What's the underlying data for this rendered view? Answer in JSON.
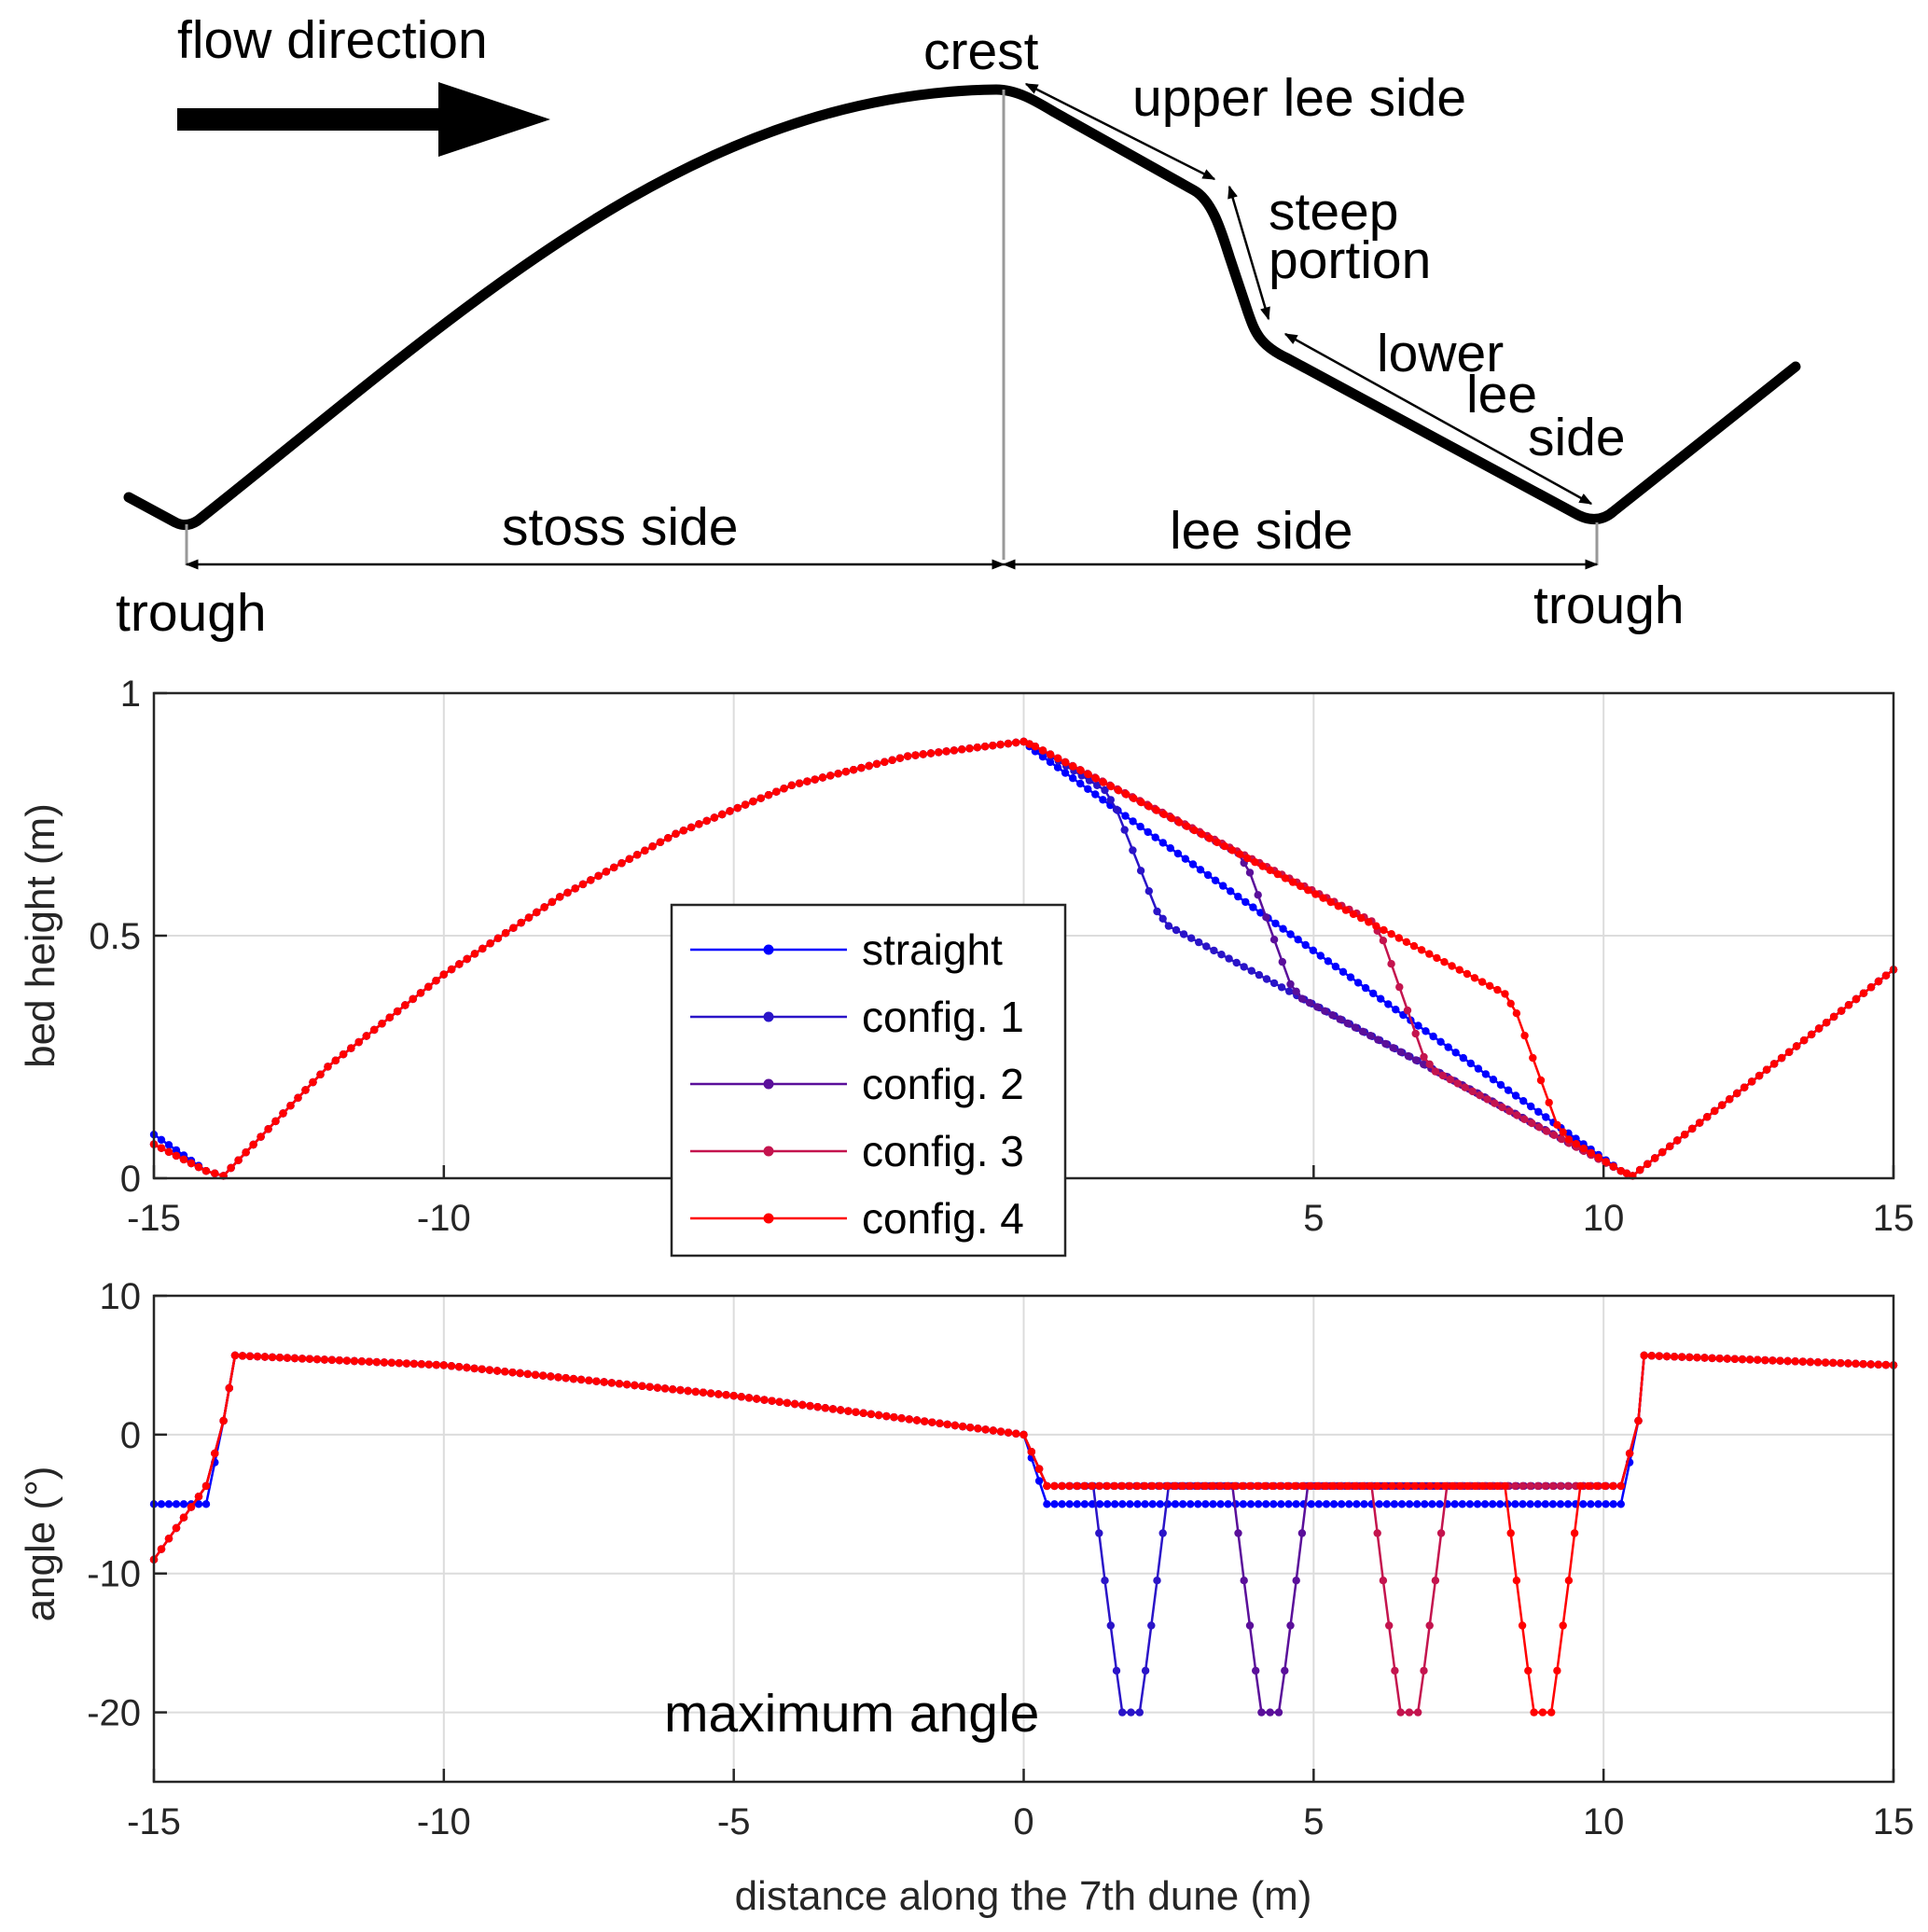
{
  "schematic": {
    "flow_direction": "flow direction",
    "crest": "crest",
    "upper_lee_side": "upper lee side",
    "steep_portion_1": "steep",
    "steep_portion_2": "portion",
    "lower_lee_side_1": "lower",
    "lower_lee_side_2": "lee",
    "lower_lee_side_3": "side",
    "stoss_side": "stoss side",
    "lee_side": "lee side",
    "trough_left": "trough",
    "trough_right": "trough"
  },
  "chart_data": [
    {
      "type": "line",
      "ylabel": "bed height (m)",
      "xlabel": "",
      "xlim": [
        -15,
        15
      ],
      "ylim": [
        0,
        1
      ],
      "xticks": [
        -15,
        -10,
        -5,
        0,
        5,
        10,
        15
      ],
      "xtick_labels": [
        "-15",
        "-10",
        "",
        "",
        "5",
        "10",
        "15"
      ],
      "yticks": [
        0,
        0.5,
        1
      ],
      "ytick_labels": [
        "0",
        "0.5",
        "1"
      ],
      "grid": true,
      "legend": {
        "position": "center",
        "entries": [
          "straight",
          "config. 1",
          "config. 2",
          "config. 3",
          "config. 4"
        ]
      },
      "series": [
        {
          "name": "straight",
          "color": "#0000ff",
          "x": [
            -15,
            -14.1,
            -13.8,
            -12,
            -10,
            -8,
            -6,
            -4,
            -2,
            0,
            0.2,
            10.3,
            10.5,
            15
          ],
          "y": [
            0.09,
            0.015,
            0.005,
            0.23,
            0.42,
            0.58,
            0.71,
            0.81,
            0.87,
            0.9,
            0.88,
            0.015,
            0.005,
            0.43
          ]
        },
        {
          "name": "config. 1",
          "color": "#2a14c8",
          "x": [
            -15,
            -14.1,
            -13.8,
            -12,
            -10,
            -8,
            -6,
            -4,
            -2,
            0,
            0.2,
            1.4,
            1.6,
            2.3,
            2.5,
            10.3,
            10.5,
            15
          ],
          "y": [
            0.07,
            0.015,
            0.005,
            0.23,
            0.42,
            0.58,
            0.71,
            0.81,
            0.87,
            0.9,
            0.89,
            0.8,
            0.76,
            0.55,
            0.52,
            0.015,
            0.005,
            0.43
          ]
        },
        {
          "name": "config. 2",
          "color": "#5a0f9a",
          "x": [
            -15,
            -14.1,
            -13.8,
            -12,
            -10,
            -8,
            -6,
            -4,
            -2,
            0,
            0.2,
            3.7,
            3.9,
            4.6,
            4.8,
            10.3,
            10.5,
            15
          ],
          "y": [
            0.07,
            0.015,
            0.005,
            0.23,
            0.42,
            0.58,
            0.71,
            0.81,
            0.87,
            0.9,
            0.89,
            0.67,
            0.63,
            0.4,
            0.37,
            0.015,
            0.005,
            0.43
          ]
        },
        {
          "name": "config. 3",
          "color": "#c4144e",
          "x": [
            -15,
            -14.1,
            -13.8,
            -12,
            -10,
            -8,
            -6,
            -4,
            -2,
            0,
            0.2,
            6.0,
            6.2,
            6.9,
            7.1,
            10.3,
            10.5,
            15
          ],
          "y": [
            0.07,
            0.015,
            0.005,
            0.23,
            0.42,
            0.58,
            0.71,
            0.81,
            0.87,
            0.9,
            0.89,
            0.53,
            0.49,
            0.25,
            0.22,
            0.015,
            0.005,
            0.43
          ]
        },
        {
          "name": "config. 4",
          "color": "#ff0000",
          "x": [
            -15,
            -14.1,
            -13.8,
            -12,
            -10,
            -8,
            -6,
            -4,
            -2,
            0,
            0.2,
            8.3,
            8.5,
            9.2,
            9.4,
            10.3,
            10.5,
            15
          ],
          "y": [
            0.07,
            0.015,
            0.005,
            0.23,
            0.42,
            0.58,
            0.71,
            0.81,
            0.87,
            0.9,
            0.89,
            0.38,
            0.34,
            0.11,
            0.08,
            0.015,
            0.005,
            0.43
          ]
        }
      ]
    },
    {
      "type": "line",
      "ylabel": "angle (°)",
      "xlabel": "distance along the 7th dune (m)",
      "xlim": [
        -15,
        15
      ],
      "ylim": [
        -25,
        10
      ],
      "xticks": [
        -15,
        -10,
        -5,
        0,
        5,
        10,
        15
      ],
      "xtick_labels": [
        "-15",
        "-10",
        "-5",
        "0",
        "5",
        "10",
        "15"
      ],
      "yticks": [
        -20,
        -10,
        0,
        10
      ],
      "ytick_labels": [
        "-20",
        "-10",
        "0",
        "10"
      ],
      "grid": true,
      "annotation": "maximum angle",
      "series": [
        {
          "name": "straight",
          "color": "#0000ff",
          "x": [
            -15,
            -14.1,
            -13.8,
            -13.6,
            -10,
            -5,
            0,
            0.4,
            10.3,
            10.6,
            10.7,
            15
          ],
          "y": [
            -5,
            -5,
            1,
            5.7,
            5,
            2.8,
            0,
            -5,
            -5,
            1,
            5.7,
            5
          ]
        },
        {
          "name": "config. 1",
          "color": "#2a14c8",
          "x": [
            -15,
            -14.1,
            -13.8,
            -13.6,
            -10,
            -5,
            0,
            0.4,
            1.2,
            1.4,
            1.6,
            1.7,
            2.0,
            2.1,
            2.3,
            2.5,
            10.3,
            10.6,
            10.7,
            15
          ],
          "y": [
            -9,
            -3.7,
            1,
            5.7,
            5,
            2.8,
            0,
            -3.7,
            -3.7,
            -10.5,
            -17,
            -20,
            -20,
            -17,
            -10.5,
            -3.7,
            -3.7,
            1,
            5.7,
            5
          ]
        },
        {
          "name": "config. 2",
          "color": "#5a0f9a",
          "x": [
            -15,
            -14.1,
            -13.8,
            -13.6,
            -10,
            -5,
            0,
            0.4,
            3.6,
            3.8,
            4.0,
            4.1,
            4.4,
            4.5,
            4.7,
            4.9,
            10.3,
            10.6,
            10.7,
            15
          ],
          "y": [
            -9,
            -3.7,
            1,
            5.7,
            5,
            2.8,
            0,
            -3.7,
            -3.7,
            -10.5,
            -17,
            -20,
            -20,
            -17,
            -10.5,
            -3.7,
            -3.7,
            1,
            5.7,
            5
          ]
        },
        {
          "name": "config. 3",
          "color": "#c4144e",
          "x": [
            -15,
            -14.1,
            -13.8,
            -13.6,
            -10,
            -5,
            0,
            0.4,
            6.0,
            6.2,
            6.4,
            6.5,
            6.8,
            6.9,
            7.1,
            7.3,
            10.3,
            10.6,
            10.7,
            15
          ],
          "y": [
            -9,
            -3.7,
            1,
            5.7,
            5,
            2.8,
            0,
            -3.7,
            -3.7,
            -10.5,
            -17,
            -20,
            -20,
            -17,
            -10.5,
            -3.7,
            -3.7,
            1,
            5.7,
            5
          ]
        },
        {
          "name": "config. 4",
          "color": "#ff0000",
          "x": [
            -15,
            -14.1,
            -13.8,
            -13.6,
            -10,
            -5,
            0,
            0.4,
            8.3,
            8.5,
            8.7,
            8.8,
            9.1,
            9.2,
            9.4,
            9.6,
            10.3,
            10.6,
            10.7,
            15
          ],
          "y": [
            -9,
            -3.7,
            1,
            5.7,
            5,
            2.8,
            0,
            -3.7,
            -3.7,
            -10.5,
            -17,
            -20,
            -20,
            -17,
            -10.5,
            -3.7,
            -3.7,
            1,
            5.7,
            5
          ]
        }
      ]
    }
  ]
}
